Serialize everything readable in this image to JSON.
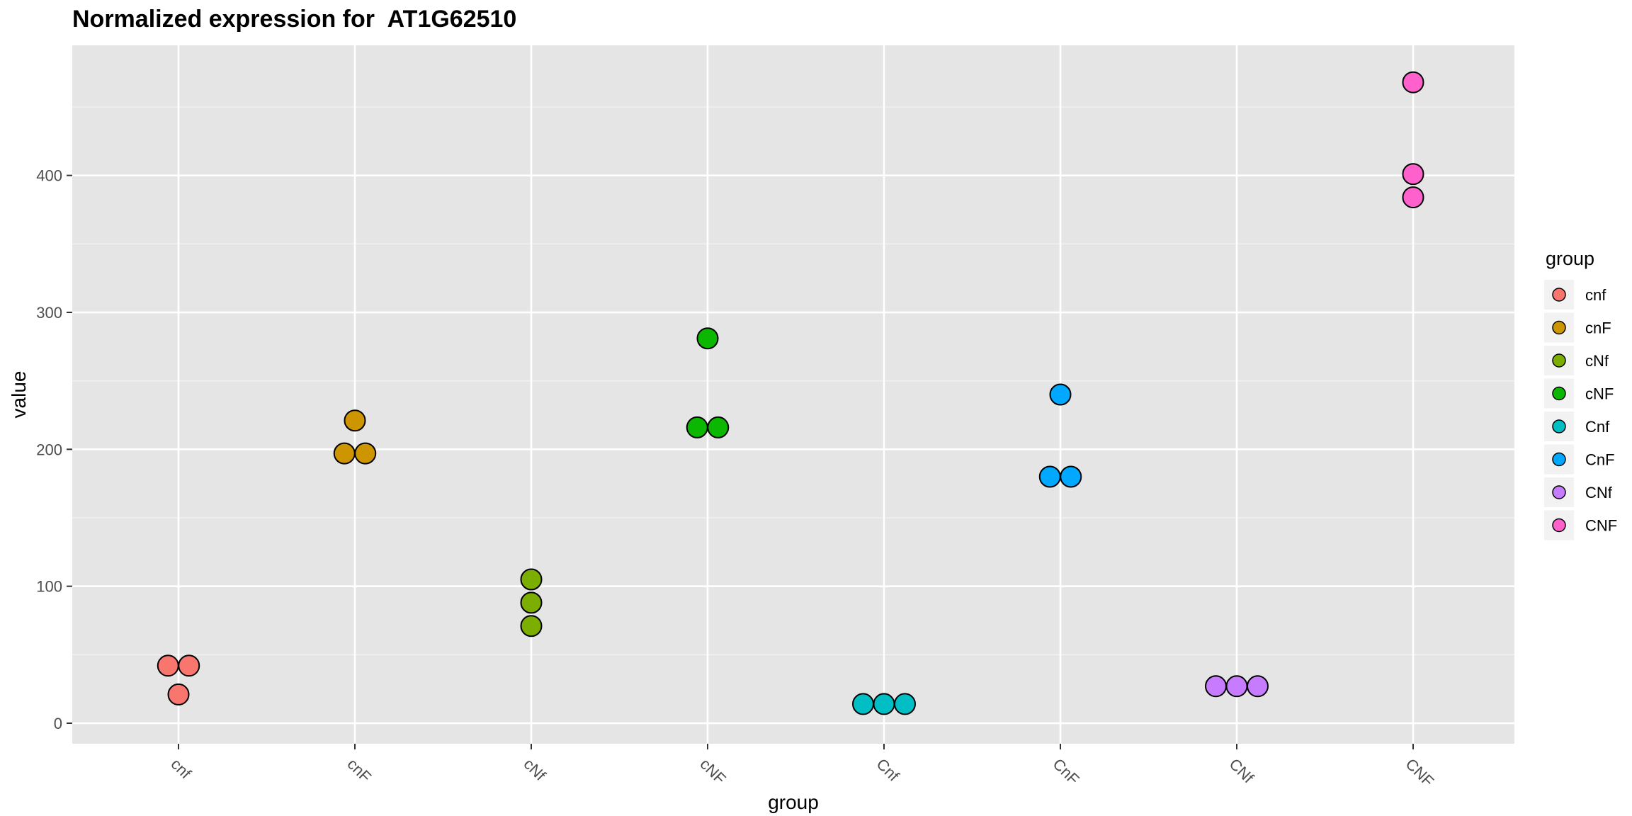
{
  "chart_data": {
    "type": "scatter",
    "title": "Normalized expression for  AT1G62510",
    "xlabel": "group",
    "ylabel": "value",
    "categories": [
      "cnf",
      "cnF",
      "cNf",
      "cNF",
      "Cnf",
      "CnF",
      "CNf",
      "CNF"
    ],
    "ylim": [
      -15,
      495
    ],
    "yticks": [
      0,
      100,
      200,
      300,
      400
    ],
    "grid": true,
    "legend": {
      "title": "group",
      "position": "right"
    },
    "series": [
      {
        "name": "cnf",
        "color": "#F8766D",
        "values": [
          42,
          42,
          21
        ]
      },
      {
        "name": "cnF",
        "color": "#CD9600",
        "values": [
          221,
          197,
          197
        ]
      },
      {
        "name": "cNf",
        "color": "#7CAE00",
        "values": [
          105,
          88,
          71
        ]
      },
      {
        "name": "cNF",
        "color": "#0CB702",
        "values": [
          281,
          216,
          216
        ]
      },
      {
        "name": "Cnf",
        "color": "#00BFC4",
        "values": [
          14,
          14,
          14
        ]
      },
      {
        "name": "CnF",
        "color": "#00A9FF",
        "values": [
          240,
          180,
          180
        ]
      },
      {
        "name": "CNf",
        "color": "#C77CFF",
        "values": [
          27,
          27,
          27
        ]
      },
      {
        "name": "CNF",
        "color": "#FF61CC",
        "values": [
          468,
          401,
          384
        ]
      }
    ]
  }
}
